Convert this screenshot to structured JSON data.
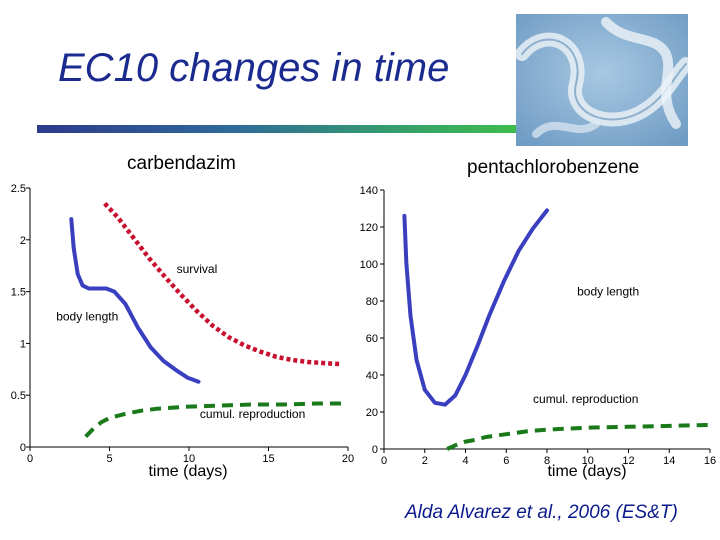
{
  "slide": {
    "title": "EC10 changes in time",
    "citation": "Alda Alvarez et al., 2006 (ES&T)",
    "photo_subject": "nematode worms photograph"
  },
  "colors": {
    "title": "#1b2a8f",
    "body_length": "#3a3fbf",
    "survival": "#c8102e",
    "reproduction": "#1a7a1a",
    "citation": "#0a1a8c"
  },
  "chart_data": [
    {
      "type": "line",
      "title": "carbendazim",
      "xlabel": "time (days)",
      "xlim": [
        0,
        20
      ],
      "ylim": [
        0,
        2.5
      ],
      "xticks": [
        "0",
        "5",
        "10",
        "15",
        "20"
      ],
      "yticks": [
        "0",
        "0.5",
        "1",
        "1.5",
        "2",
        "2.5"
      ],
      "grid": false,
      "series": [
        {
          "name": "body length",
          "style": "solid-blue",
          "x": [
            2.6,
            2.75,
            3.0,
            3.3,
            3.7,
            4.2,
            4.8,
            5.3,
            6.0,
            6.8,
            7.6,
            8.4,
            9.2,
            9.9,
            10.6
          ],
          "y": [
            2.2,
            1.92,
            1.67,
            1.56,
            1.53,
            1.53,
            1.53,
            1.5,
            1.38,
            1.15,
            0.96,
            0.83,
            0.74,
            0.67,
            0.63
          ]
        },
        {
          "name": "survival",
          "style": "dotted-red",
          "x": [
            4.7,
            5.5,
            6.5,
            7.5,
            8.5,
            9.5,
            10.5,
            11.5,
            12.5,
            13.5,
            14.5,
            15.5,
            16.5,
            17.5,
            18.5,
            19.5
          ],
          "y": [
            2.35,
            2.22,
            2.02,
            1.82,
            1.64,
            1.47,
            1.31,
            1.17,
            1.06,
            0.98,
            0.92,
            0.87,
            0.84,
            0.82,
            0.81,
            0.8
          ]
        },
        {
          "name": "cumul. reproduction",
          "style": "dashed-green",
          "x": [
            3.5,
            4.0,
            4.5,
            5.0,
            6.0,
            7.0,
            8.0,
            9.0,
            10.0,
            12.0,
            14.0,
            16.0,
            18.0,
            19.6
          ],
          "y": [
            0.1,
            0.18,
            0.24,
            0.28,
            0.32,
            0.35,
            0.37,
            0.38,
            0.39,
            0.4,
            0.41,
            0.41,
            0.42,
            0.42
          ]
        }
      ],
      "annotations": [
        {
          "text": "survival",
          "x": 10.5,
          "y": 1.68
        },
        {
          "text": "body length",
          "x": 3.6,
          "y": 1.22
        },
        {
          "text": "cumul. reproduction",
          "x": 14.0,
          "y": 0.28
        }
      ]
    },
    {
      "type": "line",
      "title": "pentachlorobenzene",
      "xlabel": "time (days)",
      "xlim": [
        0,
        16
      ],
      "ylim": [
        0,
        140
      ],
      "xticks": [
        "0",
        "2",
        "4",
        "6",
        "8",
        "10",
        "12",
        "14",
        "16"
      ],
      "yticks": [
        "0",
        "20",
        "40",
        "60",
        "80",
        "100",
        "120",
        "140"
      ],
      "grid": false,
      "series": [
        {
          "name": "body length",
          "style": "solid-blue",
          "x": [
            1.0,
            1.1,
            1.3,
            1.6,
            2.0,
            2.5,
            3.0,
            3.5,
            4.0,
            4.6,
            5.2,
            5.9,
            6.6,
            7.3,
            8.0
          ],
          "y": [
            126,
            100,
            72,
            48,
            32,
            25,
            24,
            29,
            40,
            56,
            73,
            91,
            107,
            119,
            129
          ]
        },
        {
          "name": "cumul. reproduction",
          "style": "dashed-green",
          "x": [
            3.1,
            3.5,
            4.0,
            4.5,
            5.0,
            6.0,
            7.0,
            8.0,
            9.0,
            10.0,
            12.0,
            14.0,
            16.0
          ],
          "y": [
            0,
            2,
            4,
            5,
            6.5,
            8,
            9.5,
            10.5,
            11,
            11.5,
            12,
            12.5,
            13
          ]
        }
      ],
      "annotations": [
        {
          "text": "body length",
          "x": 11.0,
          "y": 83
        },
        {
          "text": "cumul. reproduction",
          "x": 9.9,
          "y": 25
        }
      ]
    }
  ]
}
